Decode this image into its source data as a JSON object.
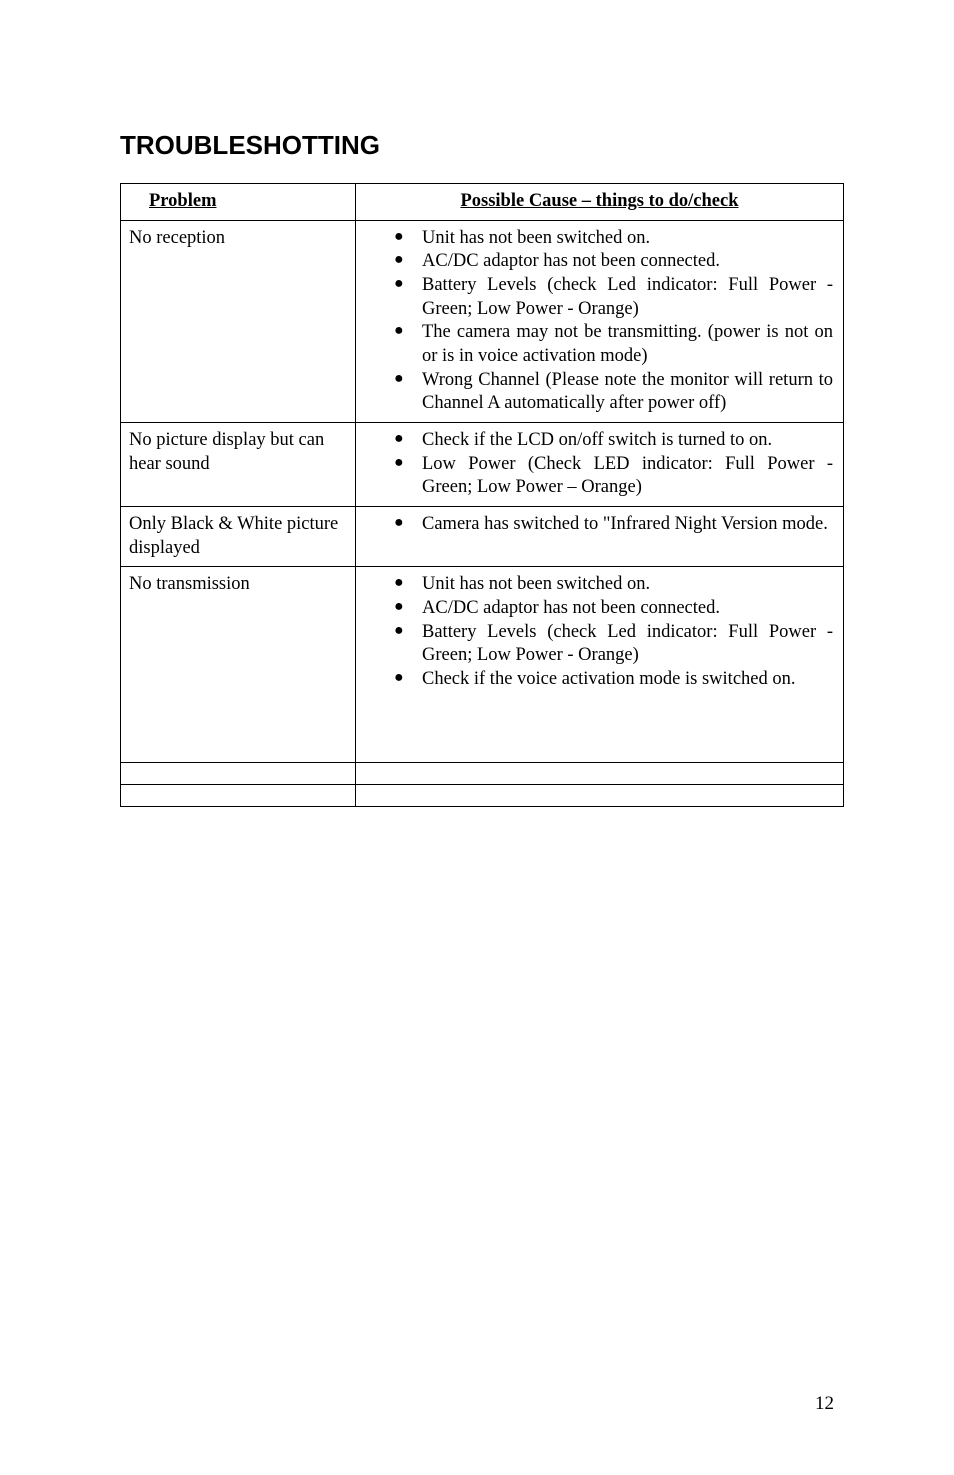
{
  "heading": "TROUBLESHOTTING",
  "table": {
    "header_problem": "Problem",
    "header_cause": "Possible Cause – things to do/check",
    "rows": [
      {
        "problem": "No reception",
        "bullets": [
          "Unit has not been switched on.",
          "AC/DC adaptor has not been connected.",
          "Battery Levels (check Led indicator: Full Power - Green; Low Power - Orange)",
          "The camera may not be transmitting. (power is not on or is in voice activation mode)",
          "Wrong Channel (Please note the monitor will return to Channel A automatically after power off)"
        ]
      },
      {
        "problem": "No picture display but can hear sound",
        "bullets": [
          "Check if the LCD on/off switch is turned to on.",
          "Low Power (Check LED indicator: Full Power - Green; Low Power – Orange)"
        ]
      },
      {
        "problem": "Only Black & White picture displayed",
        "bullets": [
          "Camera has switched to \"Infrared Night Version mode."
        ]
      },
      {
        "problem": "No transmission",
        "bullets": [
          "Unit has not been switched on.",
          "AC/DC adaptor has not been connected.",
          "Battery Levels (check Led indicator: Full Power - Green; Low Power - Orange)",
          "Check if the voice activation mode is switched on."
        ]
      }
    ]
  },
  "page_number": "12"
}
